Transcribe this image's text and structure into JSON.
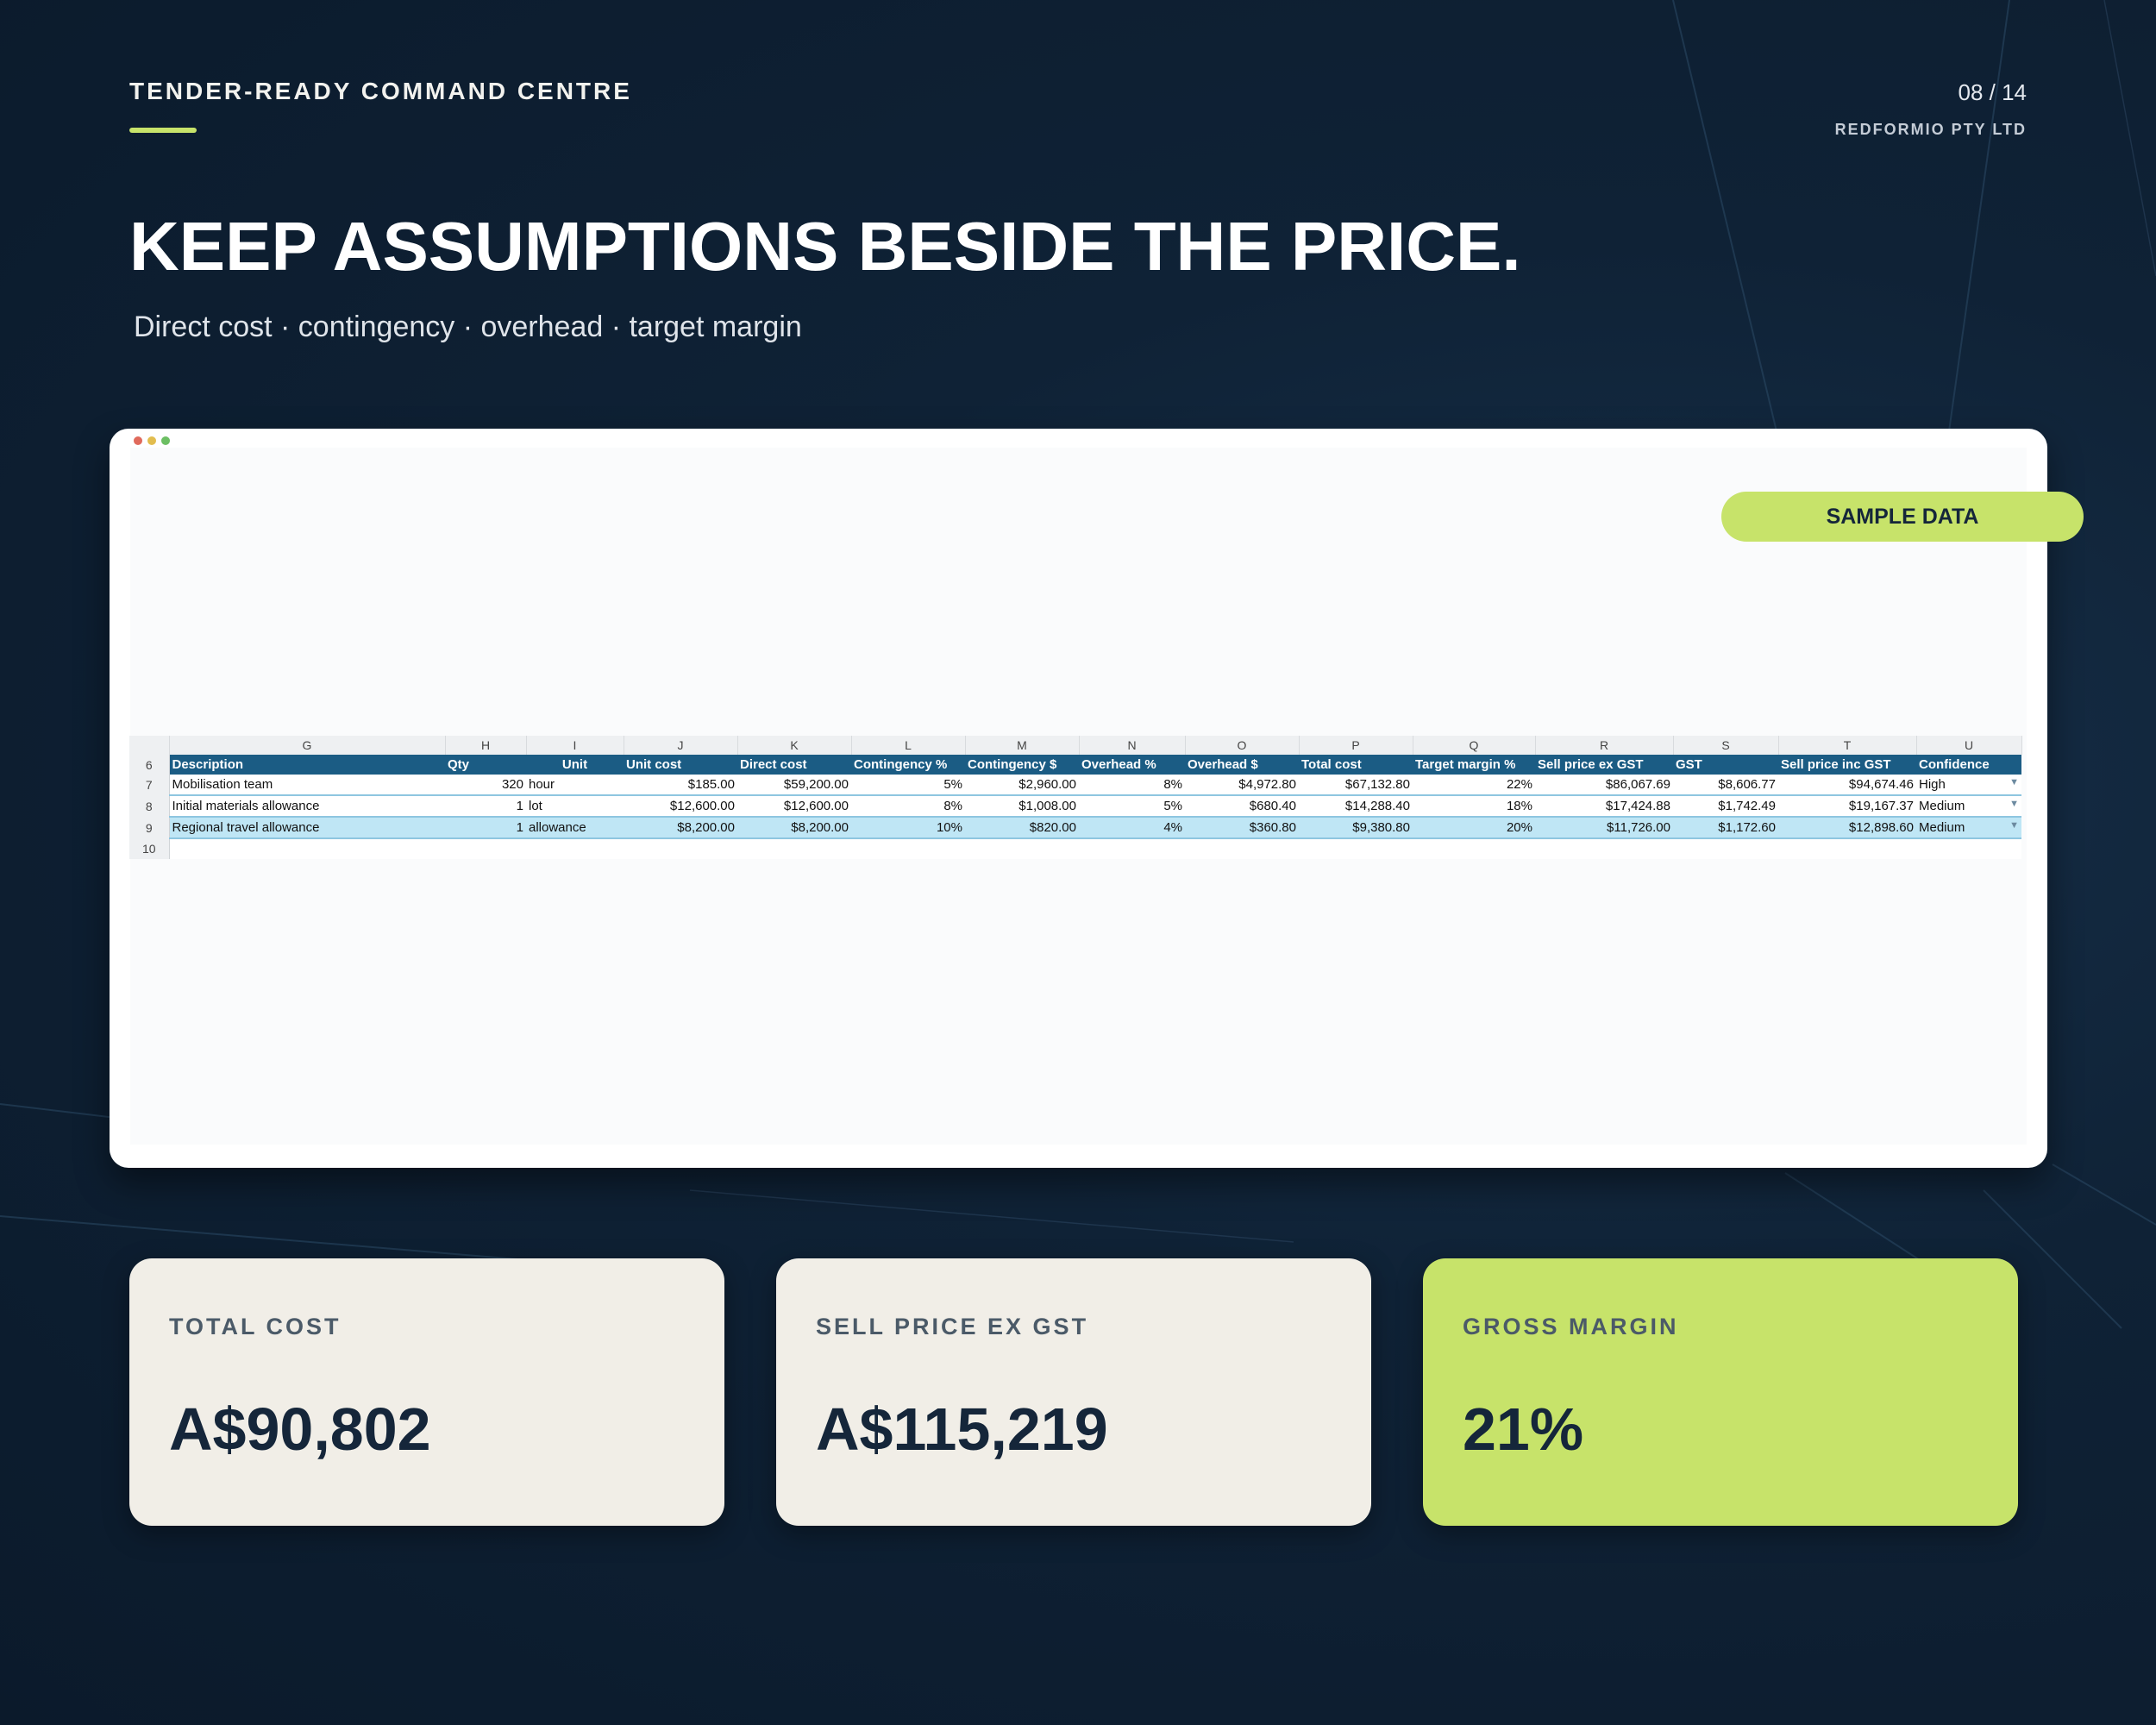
{
  "header": {
    "kicker": "TENDER-READY COMMAND CENTRE",
    "page_number": "08 / 14",
    "company": "REDFORMIO PTY LTD",
    "headline": "KEEP ASSUMPTIONS BESIDE THE PRICE.",
    "subheadline": "Direct cost · contingency · overhead · target margin"
  },
  "window": {
    "badge": "SAMPLE DATA"
  },
  "sheet": {
    "column_letters": [
      "G",
      "H",
      "I",
      "J",
      "K",
      "L",
      "M",
      "N",
      "O",
      "P",
      "Q",
      "R",
      "S",
      "T",
      "U"
    ],
    "header_row_number": "6",
    "headers": [
      "Description",
      "Qty",
      "Unit",
      "Unit cost",
      "Direct cost",
      "Contingency %",
      "Contingency $",
      "Overhead %",
      "Overhead $",
      "Total cost",
      "Target margin %",
      "Sell price ex GST",
      "GST",
      "Sell price inc GST",
      "Confidence"
    ],
    "rows": [
      {
        "row_number": "7",
        "description": "Mobilisation team",
        "qty": "320",
        "unit": "hour",
        "unit_cost": "$185.00",
        "direct_cost": "$59,200.00",
        "contingency_pct": "5%",
        "contingency_amt": "$2,960.00",
        "overhead_pct": "8%",
        "overhead_amt": "$4,972.80",
        "total_cost": "$67,132.80",
        "target_margin_pct": "22%",
        "sell_ex_gst": "$86,067.69",
        "gst": "$8,606.77",
        "sell_inc_gst": "$94,674.46",
        "confidence": "High"
      },
      {
        "row_number": "8",
        "description": "Initial materials allowance",
        "qty": "1",
        "unit": "lot",
        "unit_cost": "$12,600.00",
        "direct_cost": "$12,600.00",
        "contingency_pct": "8%",
        "contingency_amt": "$1,008.00",
        "overhead_pct": "5%",
        "overhead_amt": "$680.40",
        "total_cost": "$14,288.40",
        "target_margin_pct": "18%",
        "sell_ex_gst": "$17,424.88",
        "gst": "$1,742.49",
        "sell_inc_gst": "$19,167.37",
        "confidence": "Medium"
      },
      {
        "row_number": "9",
        "description": "Regional travel allowance",
        "qty": "1",
        "unit": "allowance",
        "unit_cost": "$8,200.00",
        "direct_cost": "$8,200.00",
        "contingency_pct": "10%",
        "contingency_amt": "$820.00",
        "overhead_pct": "4%",
        "overhead_amt": "$360.80",
        "total_cost": "$9,380.80",
        "target_margin_pct": "20%",
        "sell_ex_gst": "$11,726.00",
        "gst": "$1,172.60",
        "sell_inc_gst": "$12,898.60",
        "confidence": "Medium"
      }
    ],
    "empty_row_number": "10"
  },
  "kpis": [
    {
      "label": "TOTAL COST",
      "value": "A$90,802"
    },
    {
      "label": "SELL PRICE EX GST",
      "value": "A$115,219"
    },
    {
      "label": "GROSS MARGIN",
      "value": "21%"
    }
  ],
  "colors": {
    "background": "#0f2236",
    "accent": "#c7e36a",
    "table_header": "#1b5c84",
    "highlight_row": "#bfe6f5",
    "card": "#f1eee7"
  }
}
